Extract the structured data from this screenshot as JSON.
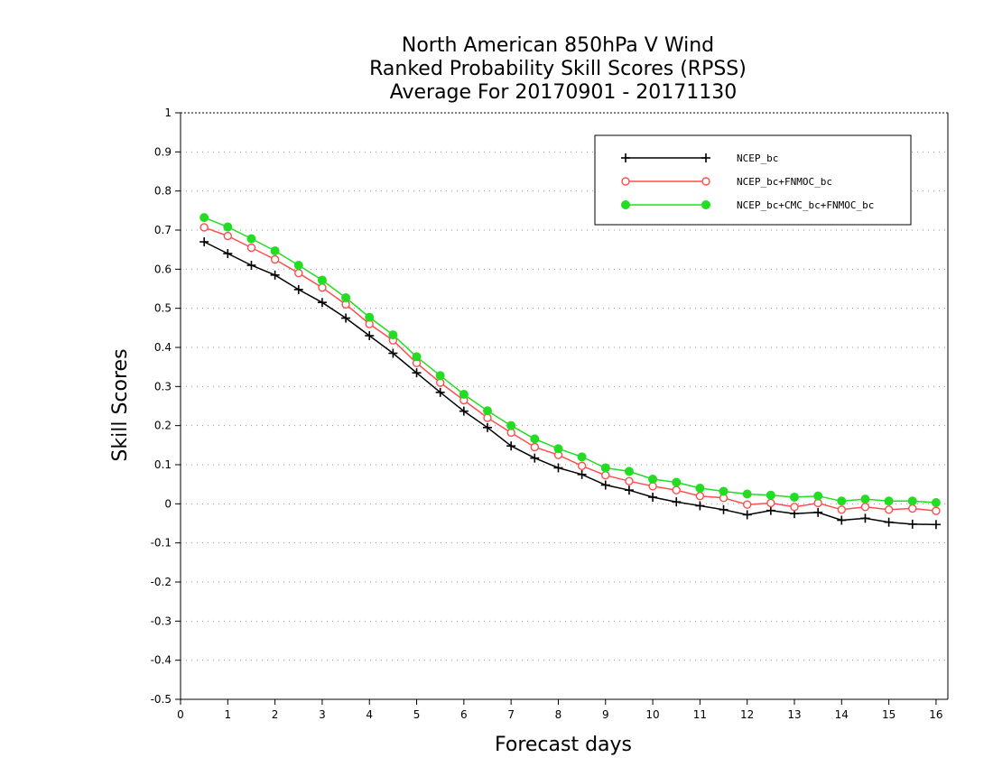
{
  "chart_data": {
    "type": "line",
    "title": [
      "North American 850hPa V Wind",
      "Ranked Probability Skill Scores (RPSS)",
      "Average For 20170901 - 20171130"
    ],
    "xlabel": "Forecast days",
    "ylabel": "Skill Scores",
    "xlim": [
      0,
      16.25
    ],
    "ylim": [
      -0.5,
      1
    ],
    "xticks": [
      "0",
      "1",
      "2",
      "3",
      "4",
      "5",
      "6",
      "7",
      "8",
      "9",
      "10",
      "11",
      "12",
      "13",
      "14",
      "15",
      "16"
    ],
    "yticks": [
      "1",
      "0.9",
      "0.8",
      "0.7",
      "0.6",
      "0.5",
      "0.4",
      "0.3",
      "0.2",
      "0.1",
      "0",
      "-0.1",
      "-0.2",
      "-0.3",
      "-0.4",
      "-0.5"
    ],
    "grid": "horizontal dotted",
    "legend_position": "top-right",
    "x": [
      0.5,
      1,
      1.5,
      2,
      2.5,
      3,
      3.5,
      4,
      4.5,
      5,
      5.5,
      6,
      6.5,
      7,
      7.5,
      8,
      8.5,
      9,
      9.5,
      10,
      10.5,
      11,
      11.5,
      12,
      12.5,
      13,
      13.5,
      14,
      14.5,
      15,
      15.5,
      16
    ],
    "series": [
      {
        "name": "NCEP_bc",
        "color": "#000000",
        "marker": "plus",
        "values": [
          0.67,
          0.64,
          0.61,
          0.585,
          0.548,
          0.515,
          0.475,
          0.43,
          0.385,
          0.335,
          0.285,
          0.237,
          0.195,
          0.148,
          0.117,
          0.092,
          0.075,
          0.048,
          0.035,
          0.017,
          0.005,
          -0.005,
          -0.015,
          -0.028,
          -0.017,
          -0.025,
          -0.022,
          -0.042,
          -0.037,
          -0.047,
          -0.052,
          -0.053
        ]
      },
      {
        "name": "NCEP_bc+FNMOC_bc",
        "color": "#ff4d4d",
        "marker": "circle-open",
        "values": [
          0.707,
          0.685,
          0.655,
          0.625,
          0.59,
          0.553,
          0.51,
          0.46,
          0.418,
          0.36,
          0.31,
          0.265,
          0.22,
          0.182,
          0.145,
          0.125,
          0.097,
          0.073,
          0.058,
          0.045,
          0.035,
          0.02,
          0.015,
          -0.002,
          0.002,
          -0.008,
          0.002,
          -0.015,
          -0.008,
          -0.015,
          -0.012,
          -0.018
        ]
      },
      {
        "name": "NCEP_bc+CMC_bc+FNMOC_bc",
        "color": "#22dd22",
        "marker": "circle-filled",
        "values": [
          0.732,
          0.708,
          0.678,
          0.647,
          0.61,
          0.572,
          0.527,
          0.477,
          0.432,
          0.376,
          0.328,
          0.28,
          0.238,
          0.2,
          0.166,
          0.141,
          0.12,
          0.092,
          0.083,
          0.063,
          0.055,
          0.04,
          0.032,
          0.025,
          0.022,
          0.017,
          0.02,
          0.007,
          0.012,
          0.007,
          0.007,
          0.003
        ]
      }
    ]
  }
}
